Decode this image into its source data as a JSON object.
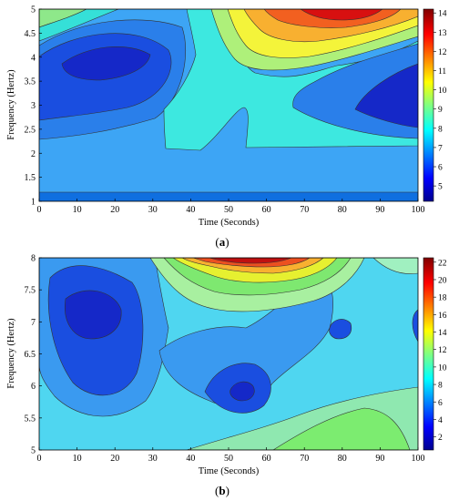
{
  "chart_data": [
    {
      "type": "heatmap",
      "subtype": "filled-contour",
      "caption": "(a)",
      "caption_letter": "a",
      "xlabel": "Time (Seconds)",
      "ylabel": "Frequency (Hertz)",
      "xlim": [
        0,
        100
      ],
      "ylim": [
        1,
        5
      ],
      "x_ticks": [
        0,
        10,
        20,
        30,
        40,
        50,
        60,
        70,
        80,
        90,
        100
      ],
      "y_ticks": [
        1,
        1.5,
        2,
        2.5,
        3,
        3.5,
        4,
        4.5,
        5
      ],
      "colorbar_ticks": [
        5,
        6,
        7,
        8,
        9,
        10,
        11,
        12,
        13,
        14
      ],
      "colorbar_range": [
        4.2,
        14.2
      ],
      "colormap": "jet",
      "regions_approx": [
        {
          "description": "low-frequency band 1-1.2 Hz",
          "value": 6
        },
        {
          "description": "background 1.2-2.3 Hz",
          "value": 7
        },
        {
          "description": "central ridge t=30-55, up to 5 Hz",
          "value": 8
        },
        {
          "description": "low trough t=5-30 near 4 Hz",
          "value": 5
        },
        {
          "description": "low trough t=80-100 near 3 Hz",
          "value": 5.5
        },
        {
          "description": "peak t=65-90 near 5 Hz",
          "value": 14
        }
      ]
    },
    {
      "type": "heatmap",
      "subtype": "filled-contour",
      "caption": "(b)",
      "caption_letter": "b",
      "xlabel": "Time (Seconds)",
      "ylabel": "Frequency (Hertz)",
      "xlim": [
        0,
        100
      ],
      "ylim": [
        5,
        8
      ],
      "x_ticks": [
        0,
        10,
        20,
        30,
        40,
        50,
        60,
        70,
        80,
        90,
        100
      ],
      "y_ticks": [
        5,
        5.5,
        6,
        6.5,
        7,
        7.5,
        8
      ],
      "colorbar_ticks": [
        2,
        4,
        6,
        8,
        10,
        12,
        14,
        16,
        18,
        20,
        22
      ],
      "colorbar_range": [
        0.5,
        22.5
      ],
      "colormap": "jet",
      "regions_approx": [
        {
          "description": "background",
          "value": 8
        },
        {
          "description": "low trough t=5-25 near 7 Hz",
          "value": 2
        },
        {
          "description": "local minimum t=55 near 6 Hz",
          "value": 3
        },
        {
          "description": "local minimum t=75 near 7 Hz",
          "value": 4
        },
        {
          "description": "peak t=45-65 near 8 Hz",
          "value": 22
        },
        {
          "description": "moderate t=70-95 near 5.5 Hz",
          "value": 11
        }
      ]
    }
  ]
}
